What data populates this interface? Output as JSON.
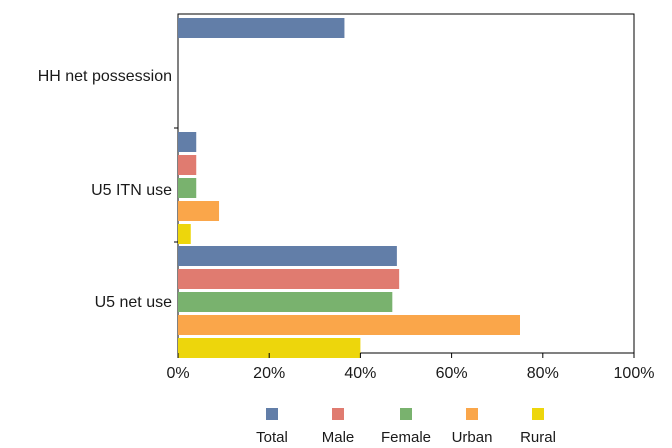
{
  "chart_data": {
    "type": "bar",
    "orientation": "horizontal",
    "title": "",
    "xlabel": "",
    "ylabel": "",
    "xlim": [
      0,
      100
    ],
    "x_ticks": [
      "0%",
      "20%",
      "40%",
      "60%",
      "80%",
      "100%"
    ],
    "categories": [
      "HH net possession",
      "U5 ITN use",
      "U5 net use"
    ],
    "series": [
      {
        "name": "Total",
        "color": "#627ea8",
        "values": [
          36.5,
          4.0,
          48.0
        ]
      },
      {
        "name": "Male",
        "color": "#e07b70",
        "values": [
          null,
          4.0,
          48.5
        ]
      },
      {
        "name": "Female",
        "color": "#79b26e",
        "values": [
          null,
          4.0,
          47.0
        ]
      },
      {
        "name": "Urban",
        "color": "#faa64a",
        "values": [
          null,
          9.0,
          75.0
        ]
      },
      {
        "name": "Rural",
        "color": "#edd60c",
        "values": [
          null,
          2.8,
          40.0
        ]
      }
    ],
    "legend_position": "bottom",
    "grid": false
  }
}
